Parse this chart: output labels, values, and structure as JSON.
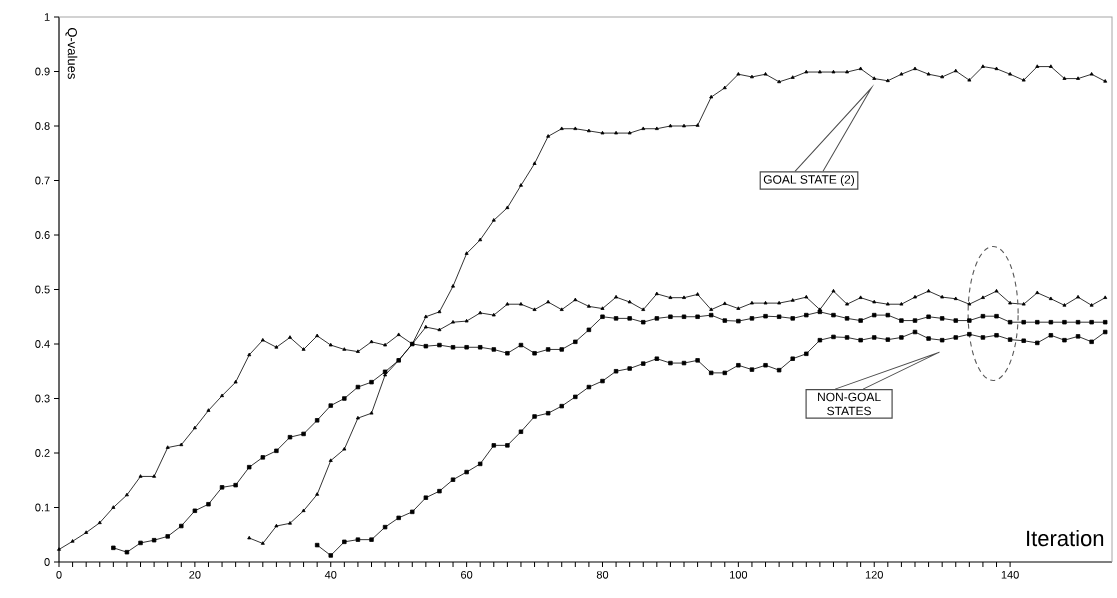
{
  "chart_data": {
    "type": "line",
    "xlabel": "Iteration",
    "ylabel": "Q-values",
    "xlim": [
      0,
      155
    ],
    "ylim": [
      0,
      1
    ],
    "xticks": [
      0,
      20,
      40,
      60,
      80,
      100,
      120,
      140
    ],
    "yticks": [
      0,
      0.1,
      0.2,
      0.3,
      0.4,
      0.5,
      0.6,
      0.7,
      0.8,
      0.9,
      1
    ],
    "grid": false,
    "series": [
      {
        "color": "#000000",
        "marker": "triangle",
        "x": [
          0,
          2,
          4,
          6,
          8,
          10,
          12,
          14,
          16,
          18,
          20,
          22,
          24,
          26,
          28,
          30,
          32,
          34,
          36,
          38,
          40,
          42,
          44,
          46,
          48,
          50,
          52,
          54,
          56,
          58,
          60,
          62,
          64,
          66,
          68,
          70,
          72,
          74,
          76,
          78,
          80,
          82,
          84,
          86,
          88,
          90,
          92,
          94,
          96,
          98,
          100,
          102,
          104,
          106,
          108,
          110,
          112,
          114,
          116,
          118,
          120,
          122,
          124,
          126,
          128,
          130,
          132,
          134,
          136,
          138,
          140,
          142,
          144,
          146,
          148,
          150,
          152,
          154
        ],
        "values": [
          0.023,
          0.038,
          0.054,
          0.072,
          0.1,
          0.123,
          0.157,
          0.157,
          0.21,
          0.215,
          0.246,
          0.278,
          0.305,
          0.33,
          0.38,
          0.407,
          0.394,
          0.412,
          0.39,
          0.415,
          0.398,
          0.39,
          0.386,
          0.404,
          0.398,
          0.417,
          0.4,
          0.431,
          0.426,
          0.44,
          0.442,
          0.457,
          0.453,
          0.473,
          0.473,
          0.463,
          0.477,
          0.463,
          0.481,
          0.469,
          0.465,
          0.486,
          0.477,
          0.463,
          0.492,
          0.485,
          0.485,
          0.491,
          0.463,
          0.474,
          0.465,
          0.475,
          0.475,
          0.475,
          0.48,
          0.486,
          0.463,
          0.497,
          0.473,
          0.485,
          0.477,
          0.473,
          0.473,
          0.486,
          0.497,
          0.486,
          0.483,
          0.473,
          0.485,
          0.497,
          0.475,
          0.473,
          0.494,
          0.483,
          0.471,
          0.486,
          0.471,
          0.485
        ]
      },
      {
        "color": "#000000",
        "marker": "square",
        "x": [
          8,
          10,
          12,
          14,
          16,
          18,
          20,
          22,
          24,
          26,
          28,
          30,
          32,
          34,
          36,
          38,
          40,
          42,
          44,
          46,
          48,
          50,
          52,
          54,
          56,
          58,
          60,
          62,
          64,
          66,
          68,
          70,
          72,
          74,
          76,
          78,
          80,
          82,
          84,
          86,
          88,
          90,
          92,
          94,
          96,
          98,
          100,
          102,
          104,
          106,
          108,
          110,
          112,
          114,
          116,
          118,
          120,
          122,
          124,
          126,
          128,
          130,
          132,
          134,
          136,
          138,
          140,
          142,
          144,
          146,
          148,
          150,
          152,
          154
        ],
        "values": [
          0.026,
          0.018,
          0.035,
          0.04,
          0.047,
          0.066,
          0.094,
          0.106,
          0.137,
          0.141,
          0.174,
          0.192,
          0.204,
          0.229,
          0.235,
          0.26,
          0.287,
          0.3,
          0.321,
          0.33,
          0.349,
          0.37,
          0.4,
          0.396,
          0.398,
          0.394,
          0.394,
          0.394,
          0.39,
          0.383,
          0.398,
          0.383,
          0.39,
          0.39,
          0.404,
          0.426,
          0.45,
          0.447,
          0.447,
          0.44,
          0.447,
          0.45,
          0.45,
          0.45,
          0.453,
          0.443,
          0.442,
          0.447,
          0.451,
          0.45,
          0.447,
          0.453,
          0.459,
          0.453,
          0.447,
          0.443,
          0.453,
          0.453,
          0.443,
          0.443,
          0.45,
          0.447,
          0.443,
          0.443,
          0.451,
          0.451,
          0.44,
          0.44,
          0.44,
          0.44,
          0.44,
          0.44,
          0.44,
          0.44
        ]
      },
      {
        "color": "#000000",
        "marker": "triangle",
        "x": [
          28,
          30,
          32,
          34,
          36,
          38,
          40,
          42,
          44,
          46,
          48,
          50,
          52,
          54,
          56,
          58,
          60,
          62,
          64,
          66,
          68,
          70,
          72,
          74,
          76,
          78,
          80,
          82,
          84,
          86,
          88,
          90,
          92,
          94,
          96,
          98,
          100,
          102,
          104,
          106,
          108,
          110,
          112,
          114,
          116,
          118,
          120,
          122,
          124,
          126,
          128,
          130,
          132,
          134,
          136,
          138,
          140,
          142,
          144,
          146,
          148,
          150,
          152,
          154
        ],
        "values": [
          0.044,
          0.034,
          0.066,
          0.071,
          0.094,
          0.124,
          0.186,
          0.207,
          0.264,
          0.273,
          0.343,
          0.37,
          0.4,
          0.45,
          0.459,
          0.506,
          0.566,
          0.591,
          0.627,
          0.65,
          0.691,
          0.731,
          0.781,
          0.795,
          0.795,
          0.791,
          0.787,
          0.787,
          0.787,
          0.795,
          0.795,
          0.8,
          0.8,
          0.801,
          0.853,
          0.87,
          0.895,
          0.89,
          0.895,
          0.881,
          0.889,
          0.899,
          0.899,
          0.899,
          0.899,
          0.905,
          0.887,
          0.883,
          0.895,
          0.905,
          0.895,
          0.89,
          0.901,
          0.884,
          0.909,
          0.905,
          0.895,
          0.884,
          0.909,
          0.909,
          0.887,
          0.887,
          0.895,
          0.882
        ]
      },
      {
        "color": "#000000",
        "marker": "square",
        "x": [
          38,
          40,
          42,
          44,
          46,
          48,
          50,
          52,
          54,
          56,
          58,
          60,
          62,
          64,
          66,
          68,
          70,
          72,
          74,
          76,
          78,
          80,
          82,
          84,
          86,
          88,
          90,
          92,
          94,
          96,
          98,
          100,
          102,
          104,
          106,
          108,
          110,
          112,
          114,
          116,
          118,
          120,
          122,
          124,
          126,
          128,
          130,
          132,
          134,
          136,
          138,
          140,
          142,
          144,
          146,
          148,
          150,
          152,
          154
        ],
        "values": [
          0.031,
          0.012,
          0.037,
          0.041,
          0.041,
          0.064,
          0.081,
          0.092,
          0.118,
          0.13,
          0.151,
          0.165,
          0.18,
          0.214,
          0.214,
          0.239,
          0.267,
          0.273,
          0.286,
          0.303,
          0.321,
          0.332,
          0.35,
          0.355,
          0.364,
          0.373,
          0.365,
          0.365,
          0.37,
          0.347,
          0.347,
          0.361,
          0.353,
          0.361,
          0.352,
          0.373,
          0.382,
          0.407,
          0.413,
          0.412,
          0.407,
          0.412,
          0.408,
          0.412,
          0.422,
          0.41,
          0.407,
          0.412,
          0.418,
          0.412,
          0.416,
          0.408,
          0.406,
          0.402,
          0.416,
          0.407,
          0.414,
          0.404,
          0.422
        ]
      }
    ],
    "annotations": [
      "GOAL STATE (2)",
      "NON-GOAL STATES"
    ]
  }
}
